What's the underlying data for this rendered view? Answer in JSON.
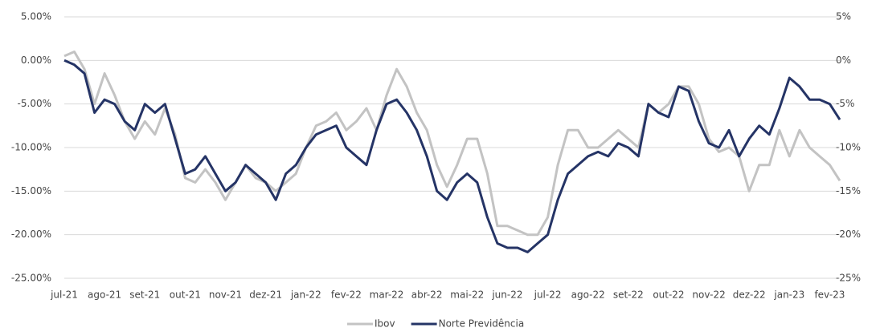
{
  "chart_data": {
    "type": "line",
    "categories": [
      "jul-21",
      null,
      null,
      null,
      "ago-21",
      null,
      null,
      null,
      "set-21",
      null,
      null,
      null,
      "out-21",
      null,
      null,
      null,
      "nov-21",
      null,
      null,
      null,
      "dez-21",
      null,
      null,
      null,
      "jan-22",
      null,
      null,
      null,
      "fev-22",
      null,
      null,
      null,
      "mar-22",
      null,
      null,
      null,
      "abr-22",
      null,
      null,
      null,
      "mai-22",
      null,
      null,
      null,
      "jun-22",
      null,
      null,
      null,
      "jul-22",
      null,
      null,
      null,
      "ago-22",
      null,
      null,
      null,
      "set-22",
      null,
      null,
      null,
      "out-22",
      null,
      null,
      null,
      "nov-22",
      null,
      null,
      null,
      "dez-22",
      null,
      null,
      null,
      "jan-23",
      null,
      null,
      null,
      "fev-23",
      null
    ],
    "series": [
      {
        "name": "Ibov",
        "color": "#c3c3c3",
        "values": [
          0.5,
          1,
          -1,
          -5,
          -1.5,
          -4,
          -7,
          -9,
          -7,
          -8.5,
          -5.5,
          -8.5,
          -13.5,
          -14,
          -12.5,
          -14,
          -16,
          -14,
          -12,
          -13.5,
          -14,
          -15,
          -14,
          -13,
          -10,
          -7.5,
          -7,
          -6,
          -8,
          -7,
          -5.5,
          -8,
          -4,
          -1,
          -3,
          -6,
          -8,
          -12,
          -14.5,
          -12,
          -9,
          -9,
          -13,
          -19,
          -19,
          -19.5,
          -20,
          -20,
          -18,
          -12,
          -8,
          -8,
          -10,
          -10,
          -9,
          -8,
          -9,
          -10,
          -5,
          -6,
          -5,
          -3,
          -3,
          -5,
          -9,
          -10.5,
          -10,
          -11,
          -15,
          -12,
          -12,
          -8,
          -11,
          -8,
          -10,
          -11,
          -12,
          -13.8
        ]
      },
      {
        "name": "Norte Previdência",
        "color": "#253466",
        "values": [
          0,
          -0.5,
          -1.5,
          -6,
          -4.5,
          -5,
          -7,
          -8,
          -5,
          -6,
          -5,
          -9,
          -13,
          -12.5,
          -11,
          -13,
          -15,
          -14,
          -12,
          -13,
          -14,
          -16,
          -13,
          -12,
          -10,
          -8.5,
          -8,
          -7.5,
          -10,
          -11,
          -12,
          -8,
          -5,
          -4.5,
          -6,
          -8,
          -11,
          -15,
          -16,
          -14,
          -13,
          -14,
          -18,
          -21,
          -21.5,
          -21.5,
          -22,
          -21,
          -20,
          -16,
          -13,
          -12,
          -11,
          -10.5,
          -11,
          -9.5,
          -10,
          -11,
          -5,
          -6,
          -6.5,
          -3,
          -3.5,
          -7,
          -9.5,
          -10,
          -8,
          -11,
          -9,
          -7.5,
          -8.5,
          -5.5,
          -2,
          -3,
          -4.5,
          -4.5,
          -5,
          -6.8
        ]
      }
    ],
    "ylim": [
      -25,
      5
    ],
    "yticks": [
      {
        "value": 5,
        "label": "5.00%"
      },
      {
        "value": 0,
        "label": "0.00%"
      },
      {
        "value": -5,
        "label": "-5.00%"
      },
      {
        "value": -10,
        "label": "-10.00%"
      },
      {
        "value": -15,
        "label": "-15.00%"
      },
      {
        "value": -20,
        "label": "-20.00%"
      },
      {
        "value": -25,
        "label": "-25.00%"
      }
    ],
    "y2lim": [
      -25,
      5
    ],
    "y2ticks": [
      {
        "value": 5,
        "label": "5%"
      },
      {
        "value": 0,
        "label": "0%"
      },
      {
        "value": -5,
        "label": "-5%"
      },
      {
        "value": -10,
        "label": "-10%"
      },
      {
        "value": -15,
        "label": "-15%"
      },
      {
        "value": -20,
        "label": "-20%"
      },
      {
        "value": -25,
        "label": "-25%"
      }
    ],
    "grid": true,
    "legend": "bottom"
  }
}
